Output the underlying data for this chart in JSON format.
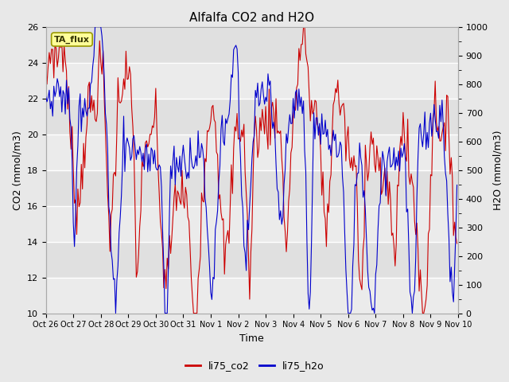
{
  "title": "Alfalfa CO2 and H2O",
  "xlabel": "Time",
  "ylabel_left": "CO2 (mmol/m3)",
  "ylabel_right": "H2O (mmol/m3)",
  "legend_label_co2": "li75_co2",
  "legend_label_h2o": "li75_h2o",
  "annotation": "TA_flux",
  "co2_ylim": [
    10,
    26
  ],
  "h2o_ylim": [
    0,
    1000
  ],
  "co2_yticks": [
    10,
    12,
    14,
    16,
    18,
    20,
    22,
    24,
    26
  ],
  "h2o_yticks": [
    0,
    100,
    200,
    300,
    400,
    500,
    600,
    700,
    800,
    900,
    1000
  ],
  "color_co2": "#cc0000",
  "color_h2o": "#0000cc",
  "bg_color": "#e8e8e8",
  "plot_bg_color": "#e0e0e0",
  "annotation_bg": "#ffff99",
  "annotation_border": "#999900",
  "line_width": 0.8,
  "x_tick_labels": [
    "Oct 26",
    "Oct 27",
    "Oct 28",
    "Oct 29",
    "Oct 30",
    "Oct 31",
    "Nov 1",
    "Nov 2",
    "Nov 3",
    "Nov 4",
    "Nov 5",
    "Nov 6",
    "Nov 7",
    "Nov 8",
    "Nov 9",
    "Nov 10"
  ],
  "x_tick_positions": [
    0,
    24,
    48,
    72,
    96,
    120,
    144,
    168,
    192,
    216,
    240,
    264,
    288,
    312,
    336,
    360
  ]
}
